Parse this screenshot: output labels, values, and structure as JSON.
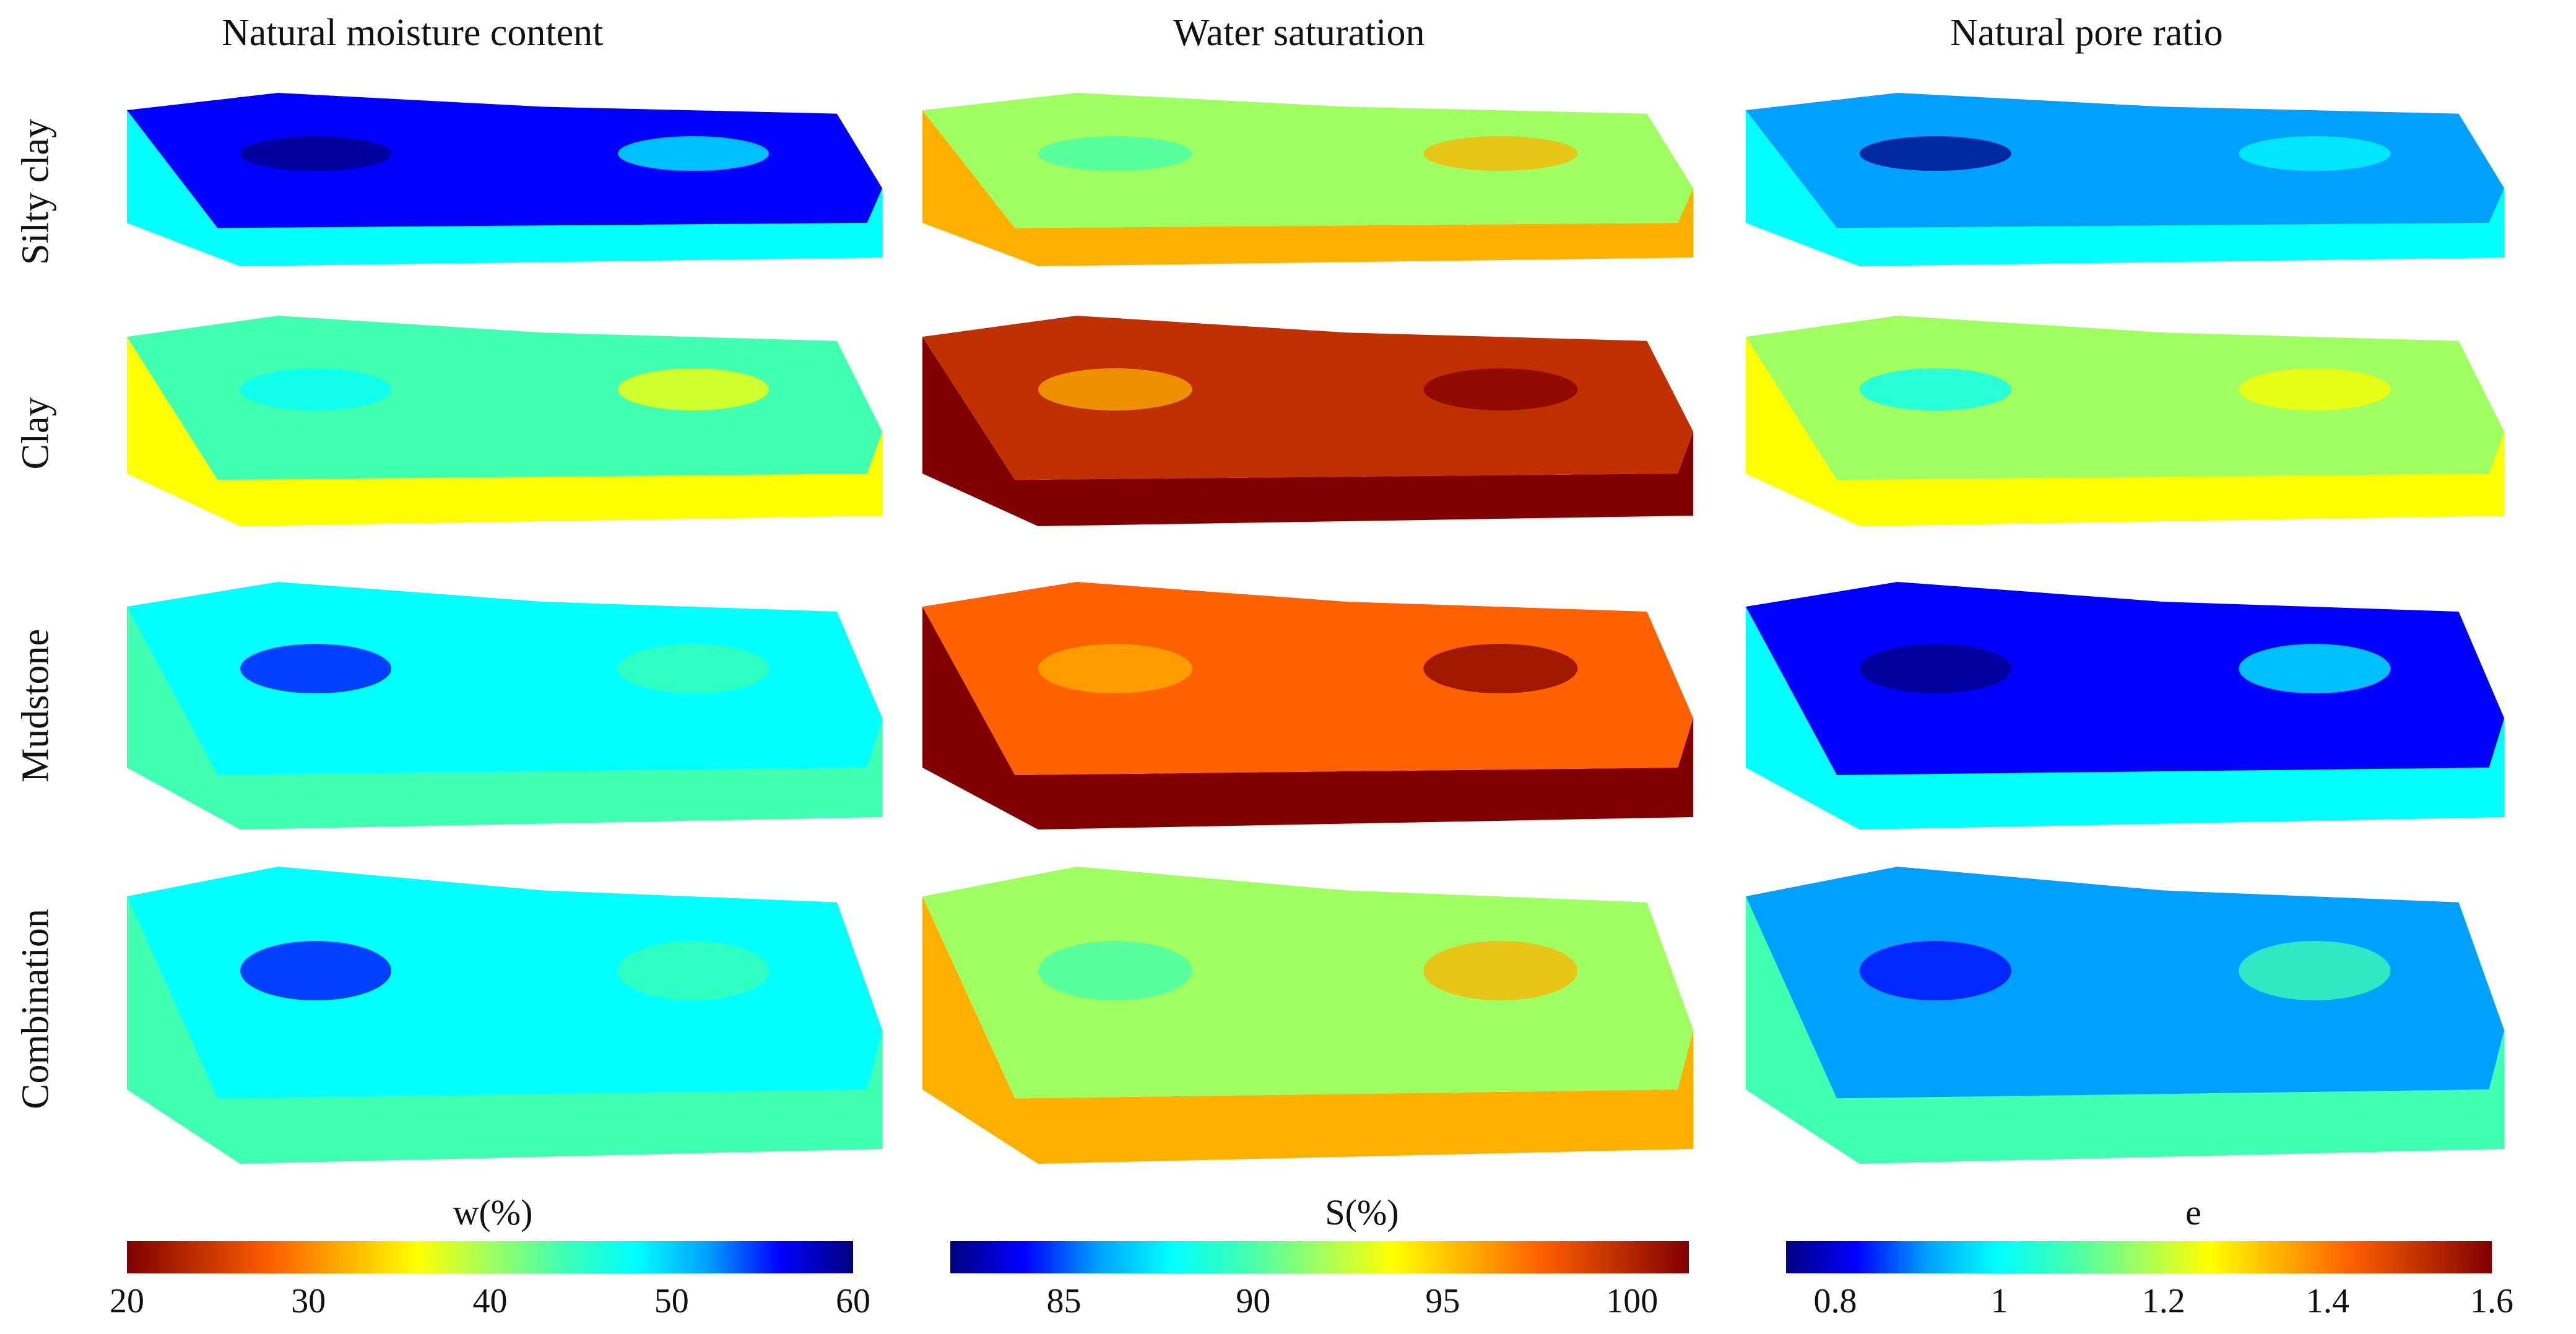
{
  "columns": [
    {
      "title": "Natural moisture content",
      "scale": "jet-reverse",
      "colorbar": {
        "label": "w(%)",
        "min": 20,
        "max": 60,
        "ticks": [
          "20",
          "30",
          "40",
          "50",
          "60"
        ],
        "tick_values": [
          20,
          30,
          40,
          50,
          60
        ]
      }
    },
    {
      "title": "Water saturation",
      "scale": "jet",
      "colorbar": {
        "label": "S(%)",
        "min": 82,
        "max": 101.5,
        "ticks": [
          "85",
          "90",
          "95",
          "100"
        ],
        "tick_values": [
          85,
          90,
          95,
          100
        ]
      }
    },
    {
      "title": "Natural pore ratio",
      "scale": "jet",
      "colorbar": {
        "label": "e",
        "min": 0.74,
        "max": 1.6,
        "ticks": [
          "0.8",
          "1",
          "1.2",
          "1.4",
          "1.6"
        ],
        "tick_values": [
          0.8,
          1.0,
          1.2,
          1.4,
          1.6
        ]
      }
    }
  ],
  "rows": [
    "Silty clay",
    "Clay",
    "Mudstone",
    "Combination"
  ],
  "palette": [
    "#00007f",
    "#0000ff",
    "#00a0ff",
    "#00ffff",
    "#40ffb0",
    "#a0ff60",
    "#ffff00",
    "#ffb000",
    "#ff6000",
    "#c03000",
    "#800000"
  ],
  "dominant_values": [
    [
      0.15,
      0.45,
      0.3,
      0.3
    ],
    [
      0.55,
      0.95,
      0.85,
      0.55
    ],
    [
      0.2,
      0.5,
      0.15,
      0.25
    ]
  ]
}
